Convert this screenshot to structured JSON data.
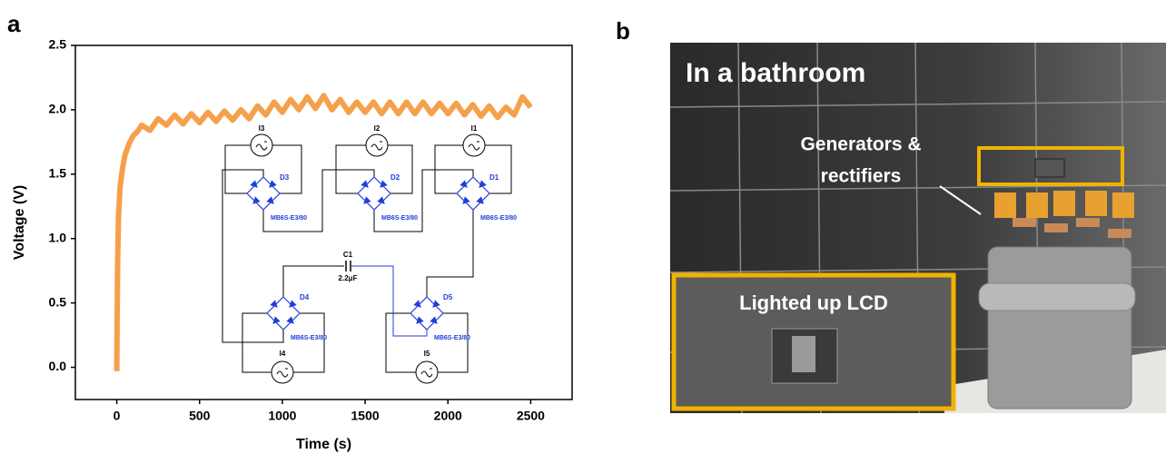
{
  "figure": {
    "panels": [
      "a",
      "b"
    ]
  },
  "chart_data": {
    "type": "line",
    "x_label": "Time (s)",
    "y_label": "Voltage (V)",
    "color": "#f5a04c",
    "xlim": [
      -250,
      2750
    ],
    "ylim": [
      -0.25,
      2.5
    ],
    "xticks": [
      0,
      500,
      1000,
      1500,
      2000,
      2500
    ],
    "yticks": [
      {
        "value": 0,
        "label": "0.0"
      },
      0.5,
      {
        "value": 1,
        "label": "1.0"
      },
      1.5,
      {
        "value": 2,
        "label": "2.0"
      },
      2.5
    ],
    "x": [
      0,
      2,
      5,
      10,
      20,
      35,
      50,
      75,
      100,
      125,
      150,
      200,
      250,
      300,
      350,
      400,
      450,
      500,
      550,
      600,
      650,
      700,
      750,
      800,
      850,
      900,
      950,
      1000,
      1050,
      1100,
      1150,
      1200,
      1250,
      1300,
      1350,
      1400,
      1450,
      1500,
      1550,
      1600,
      1650,
      1700,
      1750,
      1800,
      1850,
      1900,
      1950,
      2000,
      2050,
      2100,
      2150,
      2200,
      2250,
      2300,
      2350,
      2400,
      2450,
      2500
    ],
    "values": [
      -0.03,
      0.3,
      0.8,
      1.15,
      1.4,
      1.55,
      1.65,
      1.74,
      1.8,
      1.83,
      1.88,
      1.84,
      1.93,
      1.88,
      1.96,
      1.89,
      1.97,
      1.9,
      1.98,
      1.91,
      1.99,
      1.92,
      2.0,
      1.93,
      2.03,
      1.96,
      2.06,
      1.98,
      2.08,
      2.0,
      2.1,
      2.01,
      2.11,
      2.0,
      2.08,
      1.98,
      2.06,
      1.98,
      2.06,
      1.97,
      2.06,
      1.97,
      2.06,
      1.97,
      2.06,
      1.97,
      2.05,
      1.97,
      2.05,
      1.96,
      2.04,
      1.95,
      2.03,
      1.94,
      2.02,
      1.96,
      2.1,
      2.02
    ]
  },
  "circuit": {
    "sources": [
      "I3",
      "I2",
      "I1",
      "I4",
      "I5"
    ],
    "diodes": [
      {
        "label": "D3",
        "part": "MB6S-E3/80"
      },
      {
        "label": "D2",
        "part": "MB6S-E3/80"
      },
      {
        "label": "D1",
        "part": "MB6S-E3/80"
      },
      {
        "label": "D4",
        "part": "MB6S-E3/80"
      },
      {
        "label": "D5",
        "part": "MB6S-E3/80"
      }
    ],
    "capacitor": {
      "label": "C1",
      "value": "2.2μF"
    }
  },
  "photo": {
    "caption": "In a bathroom",
    "callout": [
      "Generators &",
      "rectifiers"
    ],
    "inset": "Lighted up LCD"
  }
}
